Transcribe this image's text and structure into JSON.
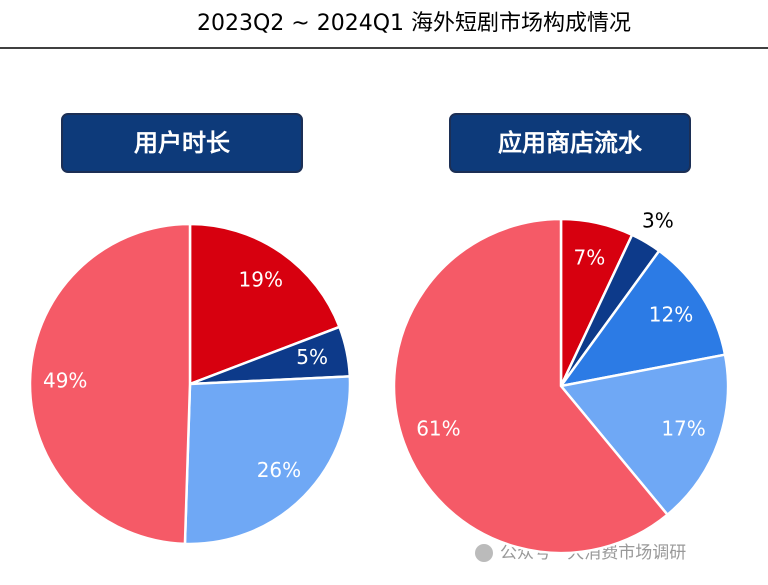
{
  "title": "2023Q2 ~ 2024Q1 海外短剧市场构成情况",
  "chart_data": [
    {
      "type": "pie",
      "title": "用户时长",
      "values": [
        19,
        5,
        26,
        49
      ],
      "value_labels": [
        "19%",
        "5%",
        "26%",
        "49%"
      ],
      "colors": [
        "#d7000f",
        "#0d3a8a",
        "#6fa8f5",
        "#f55a67"
      ]
    },
    {
      "type": "pie",
      "title": "应用商店流水",
      "values": [
        7,
        3,
        12,
        17,
        61
      ],
      "value_labels": [
        "7%",
        "3%",
        "12%",
        "17%",
        "61%"
      ],
      "colors": [
        "#d7000f",
        "#0d3a8a",
        "#2c7be5",
        "#6fa8f5",
        "#f55a67"
      ]
    }
  ],
  "watermark": "公众号 · 大消费市场调研"
}
